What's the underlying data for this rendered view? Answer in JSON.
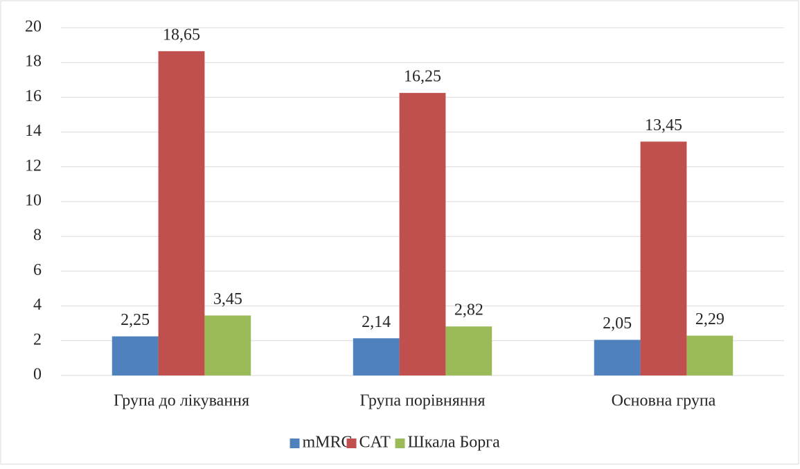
{
  "chart_data": {
    "type": "bar",
    "categories": [
      "Група до лікування",
      "Група порівняння",
      "Основна група"
    ],
    "series": [
      {
        "name": "mMRC",
        "color": "#4f81bd",
        "values": [
          2.25,
          2.14,
          2.05
        ],
        "value_labels": [
          "2,25",
          "2,14",
          "2,05"
        ]
      },
      {
        "name": "CAT",
        "color": "#c0504d",
        "values": [
          18.65,
          16.25,
          13.45
        ],
        "value_labels": [
          "18,65",
          "16,25",
          "13,45"
        ]
      },
      {
        "name": "Шкала Борга",
        "color": "#9bbb59",
        "values": [
          3.45,
          2.82,
          2.29
        ],
        "value_labels": [
          "3,45",
          "2,82",
          "2,29"
        ]
      }
    ],
    "ylim": [
      0,
      20
    ],
    "yticks": [
      0,
      2,
      4,
      6,
      8,
      10,
      12,
      14,
      16,
      18,
      20
    ],
    "grid": true,
    "legend": "bottom"
  }
}
